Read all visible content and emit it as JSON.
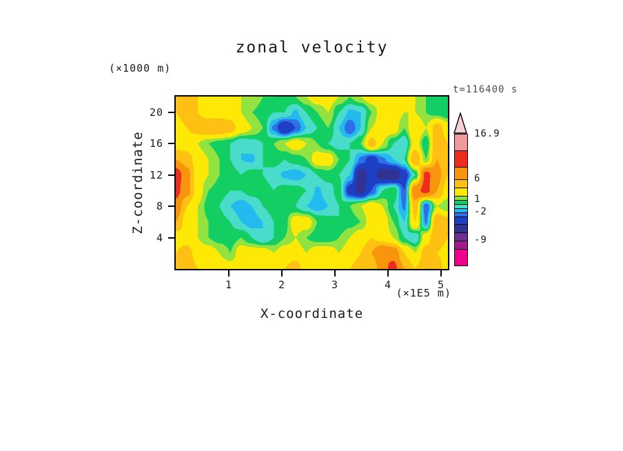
{
  "title": "zonal velocity",
  "time_label": "t=116400 s",
  "time_seconds": 116400,
  "axes": {
    "x_label": "X-coordinate",
    "x_unit": "(×1E5 m)",
    "z_label": "Z-coordinate",
    "z_unit": "(×1000 m)",
    "x_ticks": [
      1,
      2,
      3,
      4,
      5
    ],
    "z_ticks": [
      4,
      8,
      12,
      16,
      20
    ]
  },
  "chart_data": {
    "type": "heatmap",
    "title": "zonal velocity",
    "xlabel": "X-coordinate (×1E5 m)",
    "ylabel": "Z-coordinate (×1000 m)",
    "time_label": "t=116400 s",
    "x_range": [
      0,
      5.13
    ],
    "z_range": [
      0,
      22
    ],
    "grid": {
      "nx": 26,
      "nz": 12,
      "x_start": 0,
      "x_step": 0.2,
      "z_start": 0,
      "z_step": 2,
      "row_order": "bottom-to-top"
    },
    "values": [
      [
        5,
        6,
        4,
        3,
        3,
        3,
        3,
        3,
        4,
        3,
        4,
        5,
        3,
        3,
        3,
        3,
        4,
        5,
        4,
        8,
        10,
        6,
        4,
        6,
        5,
        3
      ],
      [
        4,
        5,
        3,
        3,
        2,
        1,
        3,
        3,
        3,
        2,
        3,
        3,
        2,
        3,
        3,
        2,
        3,
        4,
        6,
        9,
        8,
        4,
        2,
        5,
        4,
        3
      ],
      [
        3,
        3,
        2,
        1,
        0.5,
        0.5,
        1,
        0,
        -1,
        0,
        1,
        2,
        1,
        0.5,
        0.5,
        1,
        2,
        3,
        4,
        3,
        2,
        0,
        -1,
        3,
        6,
        4
      ],
      [
        6,
        3,
        2,
        1,
        0.5,
        0,
        -1,
        -1.6,
        -1,
        0,
        0.5,
        3,
        3,
        1,
        0.5,
        0,
        0.5,
        1,
        3,
        3,
        1,
        -1,
        4,
        -2.2,
        6,
        5
      ],
      [
        8,
        4,
        2,
        0.5,
        0,
        -1,
        -1.6,
        -1,
        0,
        0.5,
        0.5,
        0,
        -1,
        -1.6,
        -1,
        0,
        1,
        2,
        3,
        2,
        0,
        -2.2,
        5,
        -3,
        2,
        1
      ],
      [
        10,
        7,
        3,
        1,
        0.5,
        0,
        0,
        0.5,
        0.5,
        0,
        0.5,
        0.5,
        0,
        -1.2,
        -0.5,
        0.5,
        -4,
        -6,
        -3,
        0,
        1,
        -3,
        8,
        10,
        6,
        3
      ],
      [
        11,
        7,
        3,
        2,
        1,
        0.5,
        0,
        0.5,
        0,
        -0.5,
        -1.2,
        -1.6,
        -1,
        0,
        0.5,
        0,
        -1,
        -6.5,
        -4,
        -6.5,
        -6.8,
        -4,
        0,
        10,
        7,
        4
      ],
      [
        6,
        5,
        3,
        2,
        1,
        0,
        -1,
        -1.2,
        0,
        0.5,
        0,
        0.5,
        1,
        3,
        3,
        1,
        0,
        -2.2,
        -4,
        -2.2,
        -1,
        0,
        6,
        1,
        6,
        4
      ],
      [
        3,
        3,
        2,
        1,
        0.5,
        0,
        -1,
        -0.5,
        0,
        1,
        2,
        3,
        2,
        1,
        0,
        -0.5,
        0,
        1,
        5,
        2,
        0,
        -1,
        3,
        0,
        6,
        4
      ],
      [
        3,
        4,
        5,
        6,
        6,
        5,
        3,
        2,
        1,
        -2.2,
        -5,
        -3,
        -1,
        0,
        1,
        -1,
        -3,
        -1,
        2,
        3,
        3,
        1,
        4,
        2,
        5,
        3
      ],
      [
        4,
        5,
        4,
        3,
        3,
        3,
        2,
        1,
        0.5,
        0,
        0,
        -1.2,
        0,
        1,
        2,
        0,
        -1.2,
        -1,
        1,
        3,
        3,
        2,
        2,
        1,
        0.5,
        0
      ],
      [
        4,
        6,
        4,
        3,
        3,
        3,
        2,
        2,
        1,
        1,
        0.5,
        1,
        2,
        3,
        3,
        2,
        1,
        2,
        3,
        3,
        3,
        3,
        2,
        1,
        0.5,
        0
      ]
    ],
    "colorbar": {
      "levels": [
        -15,
        -11,
        -9,
        -7,
        -5,
        -3,
        -2,
        -1,
        0,
        1,
        2,
        4,
        6,
        9,
        13,
        16.9
      ],
      "colors": [
        "#EC008C",
        "#A01D90",
        "#6B2E91",
        "#323293",
        "#1C3FC4",
        "#2E6FE8",
        "#23BAEF",
        "#49DCCB",
        "#12CE63",
        "#92E33F",
        "#FDE905",
        "#FDC013",
        "#F9940D",
        "#EC2C1E",
        "#F19A9E"
      ],
      "over_color": "#F6CFD6",
      "tick_values": [
        16.9,
        6,
        1,
        -2,
        -9
      ],
      "tick_labels": [
        "16.9",
        "6",
        "1",
        "-2",
        "-9"
      ]
    }
  }
}
